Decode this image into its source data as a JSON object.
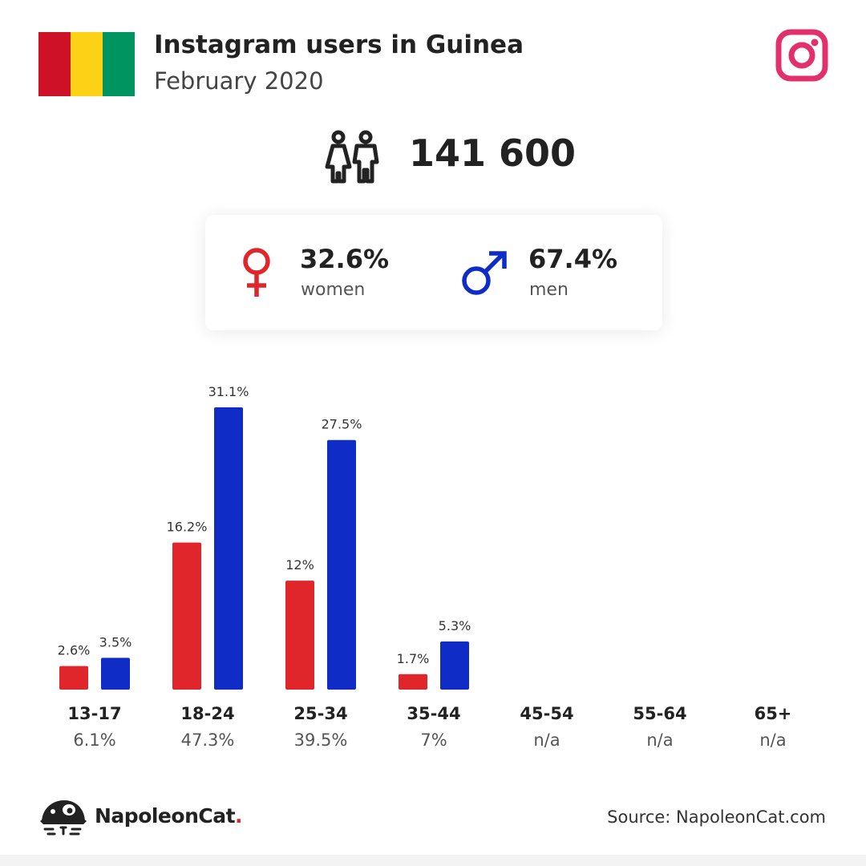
{
  "header": {
    "title": "Instagram users in Guinea",
    "subtitle": "February 2020",
    "flag_colors": [
      "#ce1126",
      "#fcd116",
      "#009460"
    ],
    "brand_icon": "instagram-icon"
  },
  "total": {
    "icon": "people-icon",
    "value": "141 600"
  },
  "gender": {
    "women": {
      "icon": "female-symbol-icon",
      "pct": "32.6%",
      "label": "women",
      "color": "#e0262b"
    },
    "men": {
      "icon": "male-symbol-icon",
      "pct": "67.4%",
      "label": "men",
      "color": "#0f2cc6"
    }
  },
  "chart_data": {
    "type": "bar",
    "categories": [
      "13-17",
      "18-24",
      "25-34",
      "35-44",
      "45-54",
      "55-64",
      "65+"
    ],
    "category_totals": [
      "6.1%",
      "47.3%",
      "39.5%",
      "7%",
      "n/a",
      "n/a",
      "n/a"
    ],
    "series": [
      {
        "values": [
          2.6,
          16.2,
          12,
          1.7,
          null,
          null,
          null
        ],
        "labels": [
          "2.6%",
          "16.2%",
          "12%",
          "1.7%",
          "",
          "",
          ""
        ],
        "color": "#e0262b"
      },
      {
        "values": [
          3.5,
          31.1,
          27.5,
          5.3,
          null,
          null,
          null
        ],
        "labels": [
          "3.5%",
          "31.1%",
          "27.5%",
          "5.3%",
          "",
          "",
          ""
        ],
        "color": "#0f2cc6"
      }
    ],
    "ylim": [
      0,
      31.1
    ],
    "grid": false
  },
  "footer": {
    "brand_name": "NapoleonCat",
    "brand_dot": ".",
    "logo_icon": "napoleoncat-logo-icon",
    "source": "Source: NapoleonCat.com"
  }
}
